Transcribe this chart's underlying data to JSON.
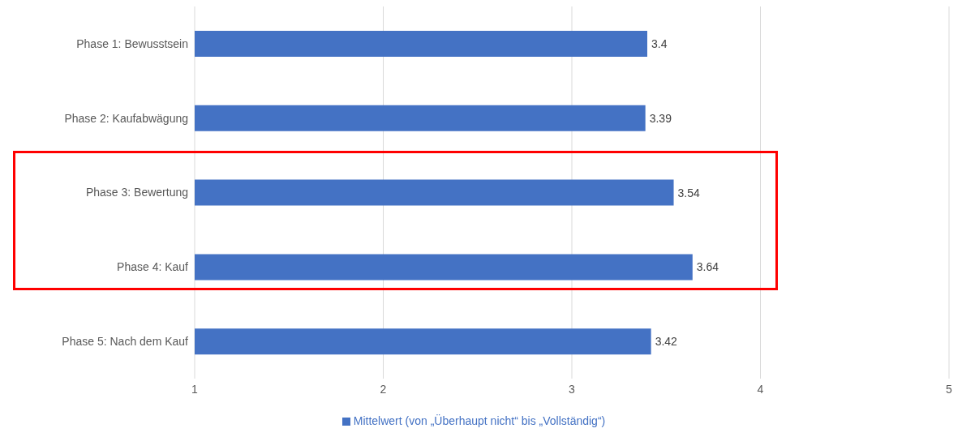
{
  "chart_data": {
    "type": "bar",
    "orientation": "horizontal",
    "categories": [
      "Phase 1: Bewusstsein",
      "Phase 2: Kaufabwägung",
      "Phase 3: Bewertung",
      "Phase 4: Kauf",
      "Phase 5: Nach dem Kauf"
    ],
    "series": [
      {
        "name": "Mittelwert (von „Überhaupt nicht“ bis „Vollständig“)",
        "color": "#4472c4",
        "values": [
          3.4,
          3.39,
          3.54,
          3.64,
          3.42
        ]
      }
    ],
    "xlim": [
      1,
      5
    ],
    "xticks": [
      1,
      2,
      3,
      4,
      5
    ],
    "grid": "x",
    "legend": "bottom",
    "data_labels": true
  }
}
